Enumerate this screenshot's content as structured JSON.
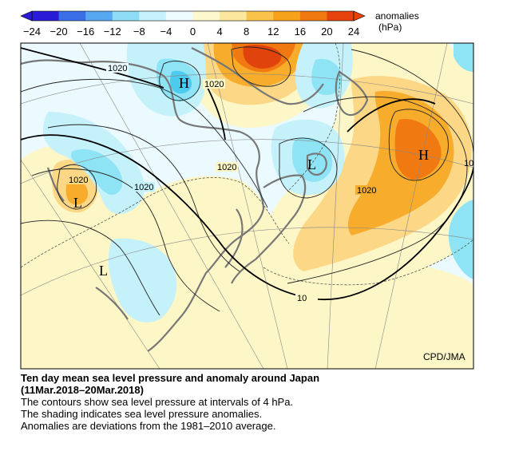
{
  "colorbar": {
    "label": "anomalies",
    "unit": "(hPa)",
    "ticks": [
      "−24",
      "−20",
      "−16",
      "−12",
      "−8",
      "−4",
      "0",
      "4",
      "8",
      "12",
      "16",
      "20",
      "24"
    ],
    "tick_values": [
      -24,
      -20,
      -16,
      -12,
      -8,
      -4,
      0,
      4,
      8,
      12,
      16,
      20,
      24
    ],
    "colors": [
      "#2a1cd6",
      "#3b6fe8",
      "#56a9f0",
      "#8fdcf6",
      "#c7f2fb",
      "#eefbff",
      "#fdf9cc",
      "#fbe79d",
      "#f9c24a",
      "#f7a21b",
      "#f07a11",
      "#e6430c"
    ]
  },
  "map": {
    "contour_labels": [
      "1020",
      "1020",
      "1020",
      "1020",
      "1020",
      "1020",
      "10"
    ],
    "pressure_centers": [
      "H",
      "H",
      "L",
      "L",
      "L"
    ],
    "credit": "CPD/JMA",
    "colors": {
      "ocean_neutral": "#eafaff",
      "negative_light": "#c5f1fa",
      "negative_mid": "#8ee4f5",
      "negative_strong": "#4ccbee",
      "positive_light": "#fdf6c6",
      "positive_mid": "#fbd786",
      "positive_strong": "#f8ac2c",
      "positive_max": "#f07a11",
      "positive_peak": "#e0440c",
      "coast": "#777777"
    }
  },
  "caption": {
    "title_line1": "Ten day mean sea level pressure and anomaly around Japan",
    "title_line2": "(11Mar.2018–20Mar.2018)",
    "line1": "The contours show sea level pressure at intervals of 4 hPa.",
    "line2": "The shading indicates sea level pressure anomalies.",
    "line3": "Anomalies are deviations from the 1981–2010 average."
  }
}
